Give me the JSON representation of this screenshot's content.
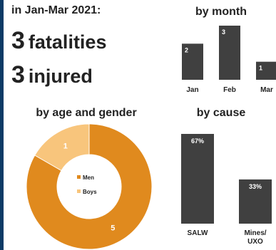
{
  "summary": {
    "period": "in Jan-Mar 2021:",
    "fatalities": {
      "value": "3",
      "label": "fatalities"
    },
    "injured": {
      "value": "3",
      "label": "injured"
    }
  },
  "colors": {
    "bar": "#404040",
    "men": "#e08a1e",
    "boys": "#f8c57c",
    "accent_rule": "#0d3b66"
  },
  "chart_data": [
    {
      "type": "bar",
      "title": "by month",
      "categories": [
        "Jan",
        "Feb",
        "Mar"
      ],
      "values": [
        2,
        3,
        1
      ],
      "data_labels": [
        "2",
        "3",
        "1"
      ],
      "ylim": [
        0,
        3
      ]
    },
    {
      "type": "pie",
      "title": "by age and gender",
      "series": [
        {
          "name": "Men",
          "value": 5
        },
        {
          "name": "Boys",
          "value": 1
        }
      ],
      "legend": "center"
    },
    {
      "type": "bar",
      "title": "by cause",
      "categories": [
        "SALW",
        "Mines/ UXO"
      ],
      "values": [
        67,
        33
      ],
      "data_labels": [
        "67%",
        "33%"
      ],
      "ylim": [
        0,
        67
      ]
    }
  ]
}
